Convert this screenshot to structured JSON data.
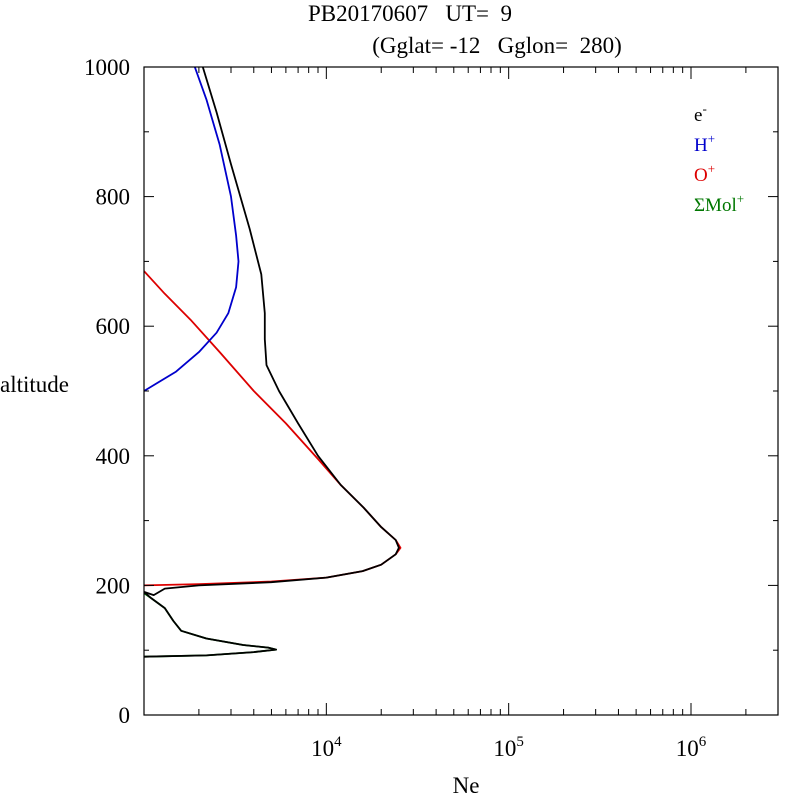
{
  "chart_data": {
    "type": "line",
    "title_line1": "PB20170607   UT=  9",
    "title_line2": "(Gglat= -12   Gglon=  280)",
    "xlabel": "Ne",
    "ylabel": "altitude",
    "x_scale": "log",
    "xlim": [
      1000,
      3000000
    ],
    "ylim": [
      0,
      1000
    ],
    "y_ticks": [
      0,
      200,
      400,
      600,
      800,
      1000
    ],
    "x_ticks": [
      {
        "value": 10000,
        "base": "10",
        "exp": "4"
      },
      {
        "value": 100000,
        "base": "10",
        "exp": "5"
      },
      {
        "value": 1000000,
        "base": "10",
        "exp": "6"
      }
    ],
    "legend_position": "top-right",
    "series": [
      {
        "name": "e",
        "sup": "-",
        "color": "#000000",
        "points": [
          [
            1000,
            90
          ],
          [
            2200,
            92
          ],
          [
            4000,
            97
          ],
          [
            5300,
            101
          ],
          [
            4800,
            104
          ],
          [
            3500,
            108
          ],
          [
            2200,
            118
          ],
          [
            1600,
            130
          ],
          [
            1450,
            145
          ],
          [
            1300,
            165
          ],
          [
            1100,
            180
          ],
          [
            1000,
            190
          ],
          [
            1130,
            185
          ],
          [
            1300,
            195
          ],
          [
            2000,
            200
          ],
          [
            5000,
            205
          ],
          [
            10000,
            212
          ],
          [
            15800,
            222
          ],
          [
            20000,
            232
          ],
          [
            24000,
            248
          ],
          [
            25000,
            258
          ],
          [
            24000,
            270
          ],
          [
            20000,
            290
          ],
          [
            16000,
            320
          ],
          [
            12000,
            355
          ],
          [
            9000,
            400
          ],
          [
            7000,
            450
          ],
          [
            5500,
            500
          ],
          [
            4700,
            540
          ],
          [
            4600,
            580
          ],
          [
            4600,
            620
          ],
          [
            4400,
            680
          ],
          [
            3800,
            750
          ],
          [
            3000,
            850
          ],
          [
            2500,
            930
          ],
          [
            2100,
            1000
          ]
        ]
      },
      {
        "name": "H",
        "sup": "+",
        "color": "#0000cc",
        "points": [
          [
            1000,
            500
          ],
          [
            1500,
            530
          ],
          [
            2000,
            560
          ],
          [
            2500,
            590
          ],
          [
            2900,
            620
          ],
          [
            3200,
            660
          ],
          [
            3300,
            700
          ],
          [
            3200,
            740
          ],
          [
            3000,
            800
          ],
          [
            2600,
            880
          ],
          [
            2200,
            950
          ],
          [
            1900,
            1000
          ]
        ]
      },
      {
        "name": "O",
        "sup": "+",
        "color": "#dd0000",
        "points": [
          [
            1000,
            200
          ],
          [
            2000,
            202
          ],
          [
            5000,
            206
          ],
          [
            10000,
            212
          ],
          [
            15800,
            222
          ],
          [
            20000,
            232
          ],
          [
            24000,
            248
          ],
          [
            25500,
            258
          ],
          [
            24000,
            270
          ],
          [
            20000,
            290
          ],
          [
            16000,
            320
          ],
          [
            12000,
            355
          ],
          [
            9000,
            395
          ],
          [
            6000,
            450
          ],
          [
            4000,
            500
          ],
          [
            2600,
            560
          ],
          [
            1800,
            610
          ],
          [
            1300,
            650
          ],
          [
            1000,
            685
          ]
        ]
      },
      {
        "name": "ΣMol",
        "sup": "+",
        "color": "#007700",
        "points": [
          [
            1000,
            90
          ],
          [
            2200,
            92
          ],
          [
            4000,
            97
          ],
          [
            5300,
            101
          ],
          [
            4800,
            104
          ],
          [
            3500,
            108
          ],
          [
            2200,
            118
          ],
          [
            1600,
            130
          ],
          [
            1450,
            145
          ],
          [
            1300,
            165
          ],
          [
            1100,
            180
          ],
          [
            1000,
            188
          ]
        ]
      }
    ]
  }
}
